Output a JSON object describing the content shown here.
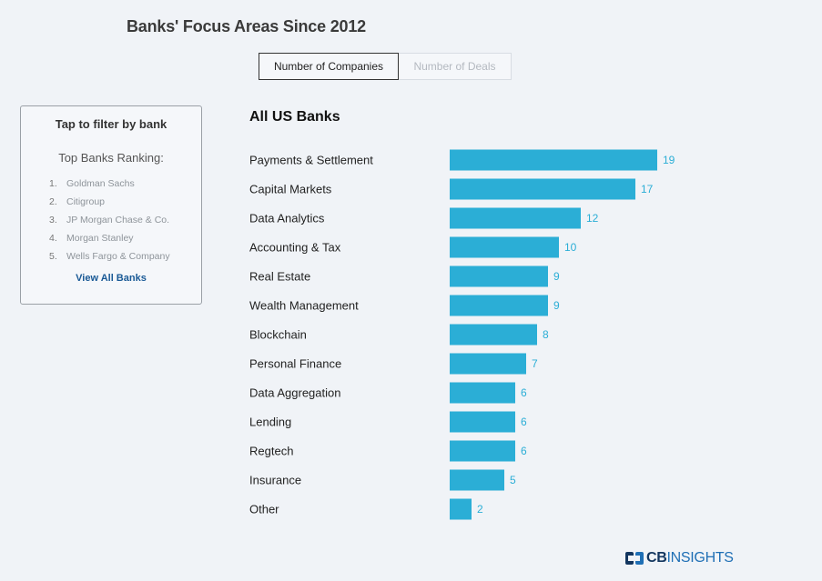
{
  "page_title": "Banks' Focus Areas Since 2012",
  "toggle": {
    "active_label": "Number of Companies",
    "inactive_label": "Number of Deals"
  },
  "filter": {
    "title": "Tap to filter by bank",
    "ranking_title": "Top Banks Ranking:",
    "banks": [
      {
        "rank": "1.",
        "name": "Goldman Sachs"
      },
      {
        "rank": "2.",
        "name": "Citigroup"
      },
      {
        "rank": "3.",
        "name": "JP Morgan Chase & Co."
      },
      {
        "rank": "4.",
        "name": "Morgan Stanley"
      },
      {
        "rank": "5.",
        "name": "Wells Fargo & Company"
      }
    ],
    "view_all_label": "View All Banks"
  },
  "chart_data": {
    "type": "bar",
    "orientation": "horizontal",
    "title": "All US Banks",
    "categories": [
      "Payments & Settlement",
      "Capital Markets",
      "Data Analytics",
      "Accounting & Tax",
      "Real Estate",
      "Wealth Management",
      "Blockchain",
      "Personal Finance",
      "Data Aggregation",
      "Lending",
      "Regtech",
      "Insurance",
      "Other"
    ],
    "values": [
      19,
      17,
      12,
      10,
      9,
      9,
      8,
      7,
      6,
      6,
      6,
      5,
      2
    ],
    "bar_color": "#2baed6",
    "value_label_color": "#2baed6",
    "grid": false,
    "legend": "none"
  },
  "brand": {
    "cb": "CB",
    "insights": "INSIGHTS",
    "logo_colors": [
      "#13365f",
      "#1f6fb5"
    ]
  }
}
